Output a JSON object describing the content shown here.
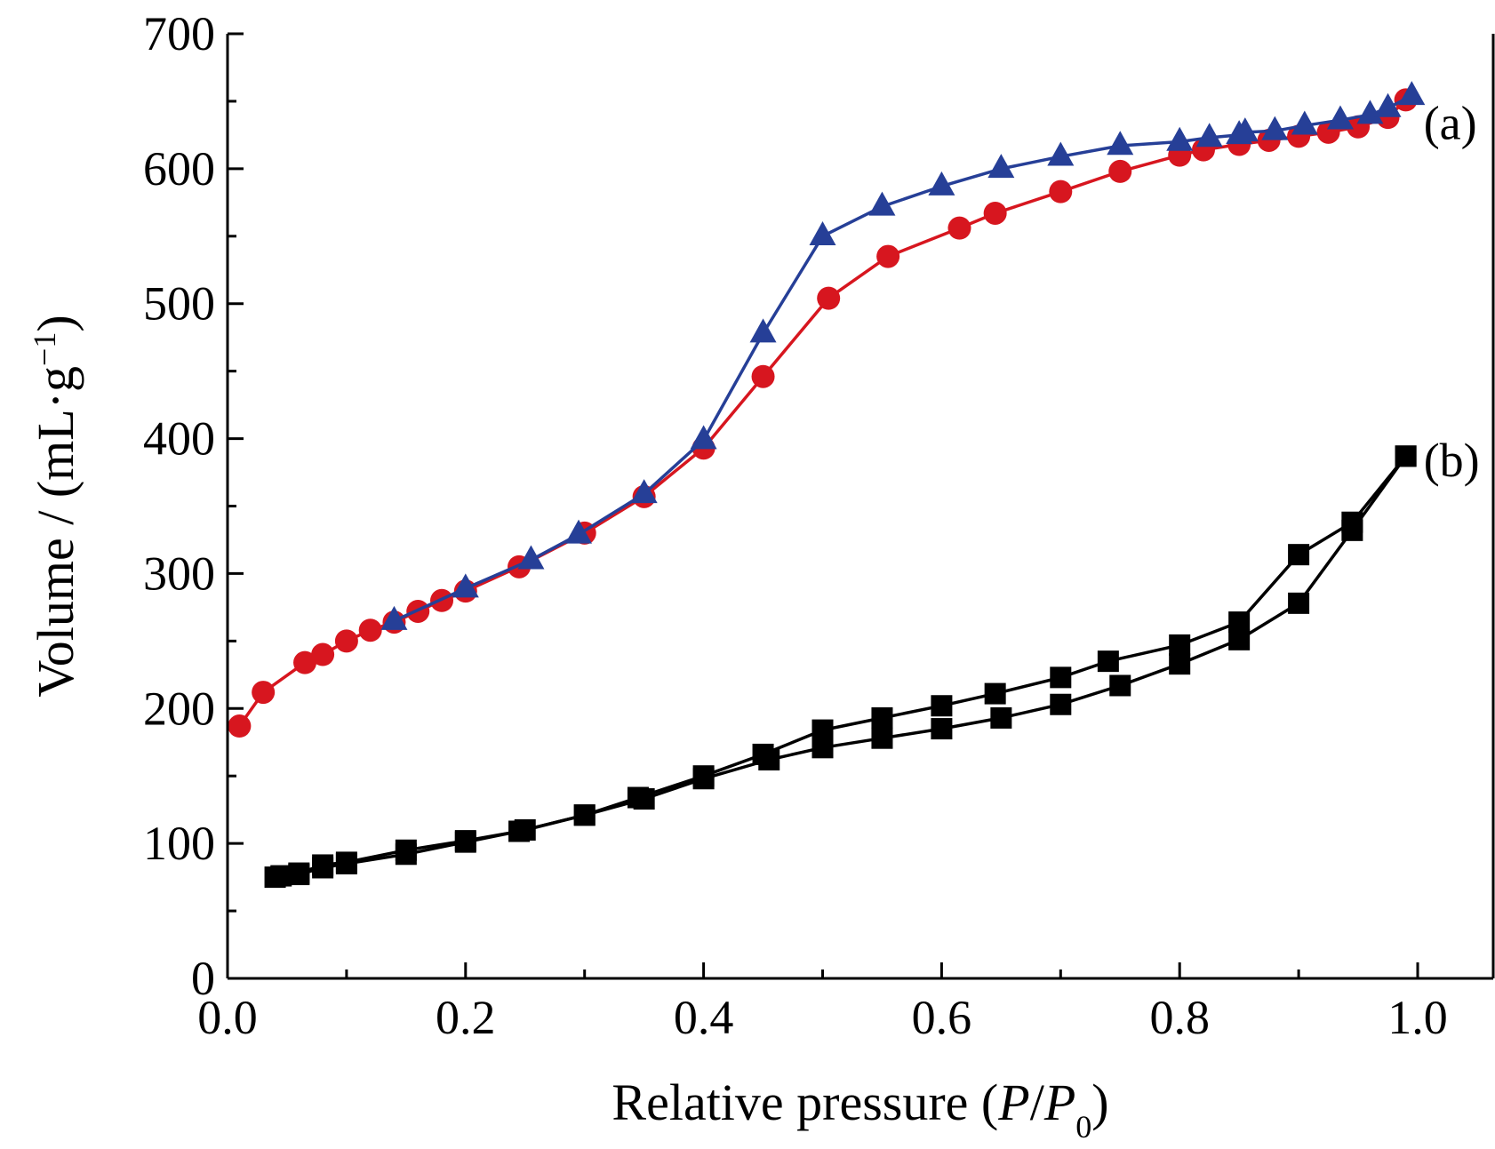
{
  "chart_data": {
    "type": "line",
    "title": "",
    "xlabel": {
      "main": "Relative pressure (",
      "italic1": "P",
      "slash": "/",
      "italic2": "P",
      "sub": "0",
      "close": ")"
    },
    "ylabel": {
      "main": "Volume / (mL·g",
      "sup": "−1",
      "close": ")"
    },
    "xlim": [
      0.0,
      1.05
    ],
    "ylim": [
      0,
      700
    ],
    "xticks": [
      "0.0",
      "0.2",
      "0.4",
      "0.6",
      "0.8",
      "1.0"
    ],
    "yticks": [
      "0",
      "100",
      "200",
      "300",
      "400",
      "500",
      "600",
      "700"
    ],
    "grid": false,
    "annotations": [
      {
        "text": "(a)",
        "x": 1.005,
        "y": 622
      },
      {
        "text": "(b)",
        "x": 1.005,
        "y": 372
      }
    ],
    "series": [
      {
        "id": "a-adsorption",
        "marker": "circle",
        "color": "#d7161f",
        "x": [
          0.01,
          0.03,
          0.065,
          0.08,
          0.1,
          0.12,
          0.14,
          0.16,
          0.18,
          0.2,
          0.245,
          0.3,
          0.35,
          0.4,
          0.45,
          0.505,
          0.555,
          0.615,
          0.645,
          0.7,
          0.75,
          0.8,
          0.82,
          0.85,
          0.875,
          0.9,
          0.925,
          0.95,
          0.975,
          0.99
        ],
        "y": [
          187,
          212,
          234,
          240,
          250,
          258,
          264,
          272,
          280,
          287,
          305,
          330,
          357,
          393,
          446,
          504,
          535,
          556,
          567,
          583,
          598,
          610,
          614,
          618,
          621,
          624,
          627,
          631,
          638,
          651
        ]
      },
      {
        "id": "a-desorption",
        "marker": "triangle",
        "color": "#263f97",
        "x": [
          0.14,
          0.2,
          0.255,
          0.295,
          0.35,
          0.4,
          0.45,
          0.5,
          0.55,
          0.6,
          0.65,
          0.7,
          0.75,
          0.8,
          0.825,
          0.85,
          0.855,
          0.88,
          0.905,
          0.935,
          0.96,
          0.975,
          0.995
        ],
        "y": [
          265,
          289,
          310,
          329,
          359,
          399,
          478,
          550,
          572,
          587,
          600,
          609,
          617,
          620,
          623,
          625,
          627,
          628,
          632,
          636,
          640,
          645,
          654
        ]
      },
      {
        "id": "b-adsorption",
        "marker": "square",
        "color": "#000000",
        "x": [
          0.04,
          0.06,
          0.08,
          0.1,
          0.15,
          0.2,
          0.25,
          0.3,
          0.35,
          0.4,
          0.455,
          0.5,
          0.55,
          0.6,
          0.65,
          0.7,
          0.75,
          0.8,
          0.85,
          0.9,
          0.945,
          0.99
        ],
        "y": [
          75,
          77,
          82,
          85,
          92,
          101,
          110,
          121,
          133,
          148,
          162,
          171,
          178,
          185,
          193,
          203,
          217,
          233,
          251,
          278,
          332,
          387
        ]
      },
      {
        "id": "b-desorption",
        "marker": "square",
        "color": "#000000",
        "x": [
          0.99,
          0.945,
          0.9,
          0.85,
          0.8,
          0.74,
          0.7,
          0.645,
          0.6,
          0.55,
          0.5,
          0.45,
          0.4,
          0.345,
          0.3,
          0.245,
          0.2,
          0.15,
          0.1,
          0.08,
          0.06,
          0.045
        ],
        "y": [
          387,
          338,
          314,
          264,
          247,
          235,
          223,
          211,
          202,
          193,
          184,
          166,
          150,
          134,
          121,
          109,
          102,
          95,
          86,
          84,
          78,
          76
        ]
      }
    ]
  }
}
